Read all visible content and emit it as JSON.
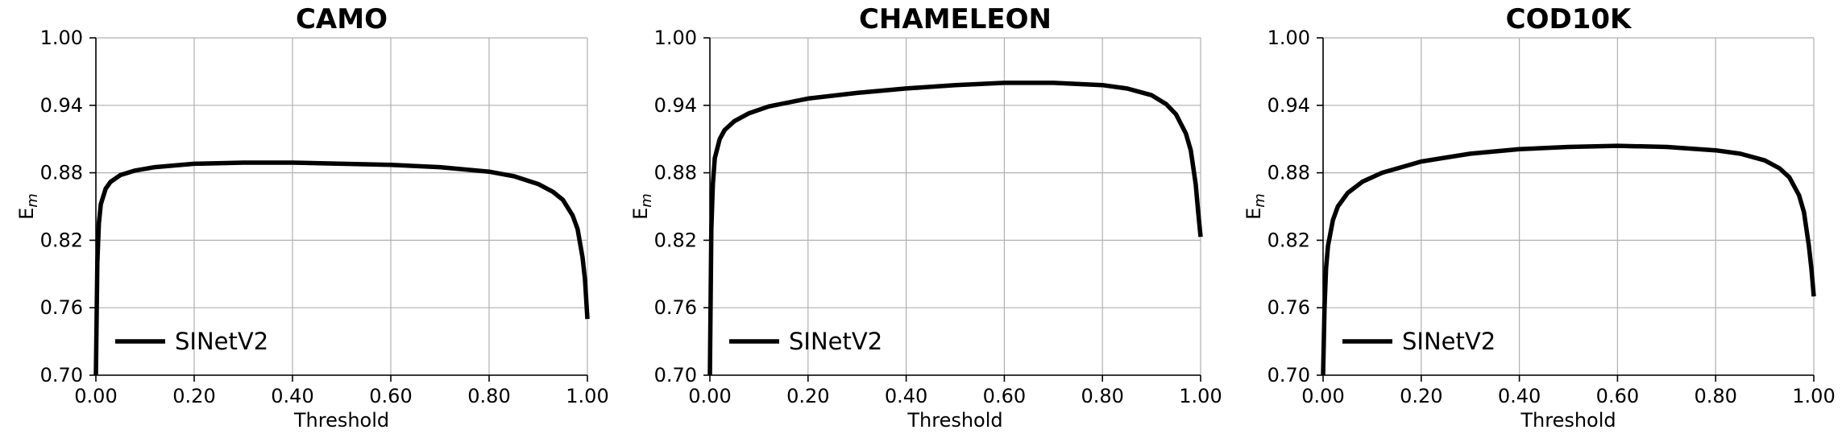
{
  "chart_data": [
    {
      "type": "line",
      "title": "CAMO",
      "xlabel": "Threshold",
      "ylabel_base": "E",
      "ylabel_sub": "m",
      "xlim": [
        0,
        1
      ],
      "ylim": [
        0.7,
        1.0
      ],
      "xticks": [
        "0.00",
        "0.20",
        "0.40",
        "0.60",
        "0.80",
        "1.00"
      ],
      "yticks": [
        "0.70",
        "0.76",
        "0.82",
        "0.88",
        "0.94",
        "1.00"
      ],
      "grid": true,
      "legend_position": "lower-left",
      "series": [
        {
          "name": "SINetV2",
          "color": "#000000",
          "x": [
            0.0,
            0.003,
            0.006,
            0.01,
            0.02,
            0.03,
            0.05,
            0.08,
            0.12,
            0.2,
            0.3,
            0.4,
            0.5,
            0.6,
            0.7,
            0.8,
            0.85,
            0.9,
            0.93,
            0.95,
            0.97,
            0.98,
            0.99,
            0.995,
            1.0
          ],
          "y": [
            0.7,
            0.8,
            0.835,
            0.852,
            0.866,
            0.872,
            0.878,
            0.882,
            0.885,
            0.888,
            0.889,
            0.889,
            0.888,
            0.887,
            0.885,
            0.881,
            0.877,
            0.87,
            0.863,
            0.856,
            0.842,
            0.83,
            0.805,
            0.785,
            0.75
          ]
        }
      ]
    },
    {
      "type": "line",
      "title": "CHAMELEON",
      "xlabel": "Threshold",
      "ylabel_base": "E",
      "ylabel_sub": "m",
      "xlim": [
        0,
        1
      ],
      "ylim": [
        0.7,
        1.0
      ],
      "xticks": [
        "0.00",
        "0.20",
        "0.40",
        "0.60",
        "0.80",
        "1.00"
      ],
      "yticks": [
        "0.70",
        "0.76",
        "0.82",
        "0.88",
        "0.94",
        "1.00"
      ],
      "grid": true,
      "legend_position": "lower-left",
      "series": [
        {
          "name": "SINetV2",
          "color": "#000000",
          "x": [
            0.0,
            0.003,
            0.006,
            0.01,
            0.02,
            0.03,
            0.05,
            0.08,
            0.12,
            0.2,
            0.3,
            0.4,
            0.5,
            0.6,
            0.7,
            0.8,
            0.85,
            0.9,
            0.93,
            0.95,
            0.97,
            0.98,
            0.99,
            0.995,
            1.0
          ],
          "y": [
            0.7,
            0.83,
            0.87,
            0.893,
            0.91,
            0.918,
            0.926,
            0.933,
            0.939,
            0.946,
            0.951,
            0.955,
            0.958,
            0.96,
            0.96,
            0.958,
            0.955,
            0.949,
            0.941,
            0.932,
            0.915,
            0.9,
            0.87,
            0.845,
            0.823
          ]
        }
      ]
    },
    {
      "type": "line",
      "title": "COD10K",
      "xlabel": "Threshold",
      "ylabel_base": "E",
      "ylabel_sub": "m",
      "xlim": [
        0,
        1
      ],
      "ylim": [
        0.7,
        1.0
      ],
      "xticks": [
        "0.00",
        "0.20",
        "0.40",
        "0.60",
        "0.80",
        "1.00"
      ],
      "yticks": [
        "0.70",
        "0.76",
        "0.82",
        "0.88",
        "0.94",
        "1.00"
      ],
      "grid": true,
      "legend_position": "lower-left",
      "series": [
        {
          "name": "SINetV2",
          "color": "#000000",
          "x": [
            0.0,
            0.003,
            0.006,
            0.01,
            0.02,
            0.03,
            0.05,
            0.08,
            0.12,
            0.2,
            0.3,
            0.4,
            0.5,
            0.6,
            0.7,
            0.8,
            0.85,
            0.9,
            0.93,
            0.95,
            0.97,
            0.98,
            0.99,
            0.995,
            1.0
          ],
          "y": [
            0.7,
            0.76,
            0.795,
            0.815,
            0.838,
            0.85,
            0.862,
            0.872,
            0.88,
            0.89,
            0.897,
            0.901,
            0.903,
            0.904,
            0.903,
            0.9,
            0.897,
            0.891,
            0.884,
            0.876,
            0.86,
            0.845,
            0.815,
            0.795,
            0.77
          ]
        }
      ]
    }
  ]
}
